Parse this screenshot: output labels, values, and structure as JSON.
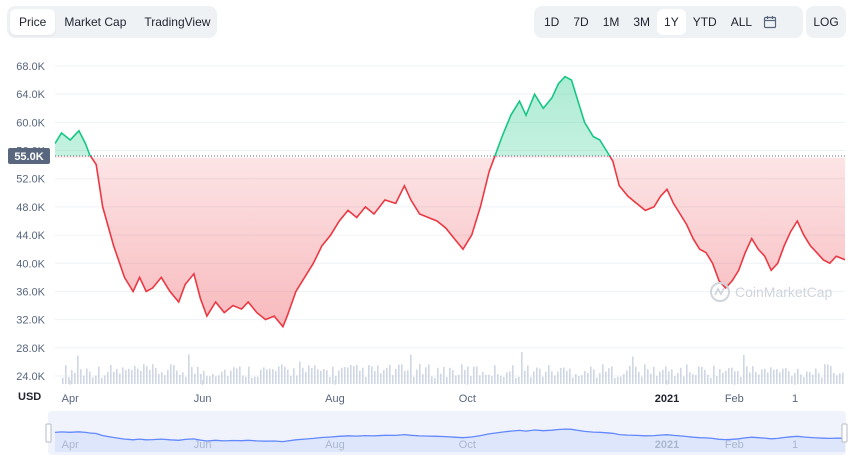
{
  "view_tabs": [
    {
      "label": "Price",
      "active": true
    },
    {
      "label": "Market Cap",
      "active": false
    },
    {
      "label": "TradingView",
      "active": false
    }
  ],
  "range_buttons": [
    {
      "label": "1D",
      "active": false
    },
    {
      "label": "7D",
      "active": false
    },
    {
      "label": "1M",
      "active": false
    },
    {
      "label": "3M",
      "active": false
    },
    {
      "label": "1Y",
      "active": true
    },
    {
      "label": "YTD",
      "active": false
    },
    {
      "label": "ALL",
      "active": false
    }
  ],
  "calendar_icon": "calendar-icon",
  "log_label": "LOG",
  "watermark": "CoinMarketCap",
  "colors": {
    "up": "#16c784",
    "down": "#ea3943",
    "navigator": "#6188ff",
    "grid": "#eff2f5"
  },
  "chart_data": {
    "type": "area",
    "currency_label": "USD",
    "baseline": 55000,
    "baseline_label": "55.0K",
    "y_ticks": [
      "68.0K",
      "64.0K",
      "60.0K",
      "56.0K",
      "52.0K",
      "48.0K",
      "44.0K",
      "40.0K",
      "36.0K",
      "32.0K",
      "28.0K",
      "24.0K"
    ],
    "ylim": [
      24000,
      68000
    ],
    "x_ticks": [
      {
        "label": "Apr",
        "date": "2020-04-01",
        "bold": false
      },
      {
        "label": "Jun",
        "date": "2020-06-01",
        "bold": false
      },
      {
        "label": "Aug",
        "date": "2020-08-01",
        "bold": false
      },
      {
        "label": "Oct",
        "date": "2020-10-01",
        "bold": false
      },
      {
        "label": "2021",
        "date": "2021-01-01",
        "bold": true
      },
      {
        "label": "Feb",
        "date": "2021-02-01",
        "bold": false
      },
      {
        "label": "1",
        "date": "2021-03-01",
        "bold": false
      }
    ],
    "x_range": [
      "2020-03-25",
      "2021-03-24"
    ],
    "price_series": [
      [
        "2020-03-25",
        57000
      ],
      [
        "2020-03-28",
        58500
      ],
      [
        "2020-04-01",
        57500
      ],
      [
        "2020-04-05",
        58800
      ],
      [
        "2020-04-08",
        57000
      ],
      [
        "2020-04-10",
        55400
      ],
      [
        "2020-04-13",
        54000
      ],
      [
        "2020-04-16",
        48000
      ],
      [
        "2020-04-21",
        42500
      ],
      [
        "2020-04-26",
        38000
      ],
      [
        "2020-04-30",
        36000
      ],
      [
        "2020-05-03",
        38000
      ],
      [
        "2020-05-06",
        36000
      ],
      [
        "2020-05-09",
        36500
      ],
      [
        "2020-05-13",
        38000
      ],
      [
        "2020-05-17",
        36000
      ],
      [
        "2020-05-21",
        34500
      ],
      [
        "2020-05-24",
        37000
      ],
      [
        "2020-05-28",
        38500
      ],
      [
        "2020-05-31",
        35000
      ],
      [
        "2020-06-03",
        32500
      ],
      [
        "2020-06-07",
        34500
      ],
      [
        "2020-06-11",
        33000
      ],
      [
        "2020-06-15",
        34000
      ],
      [
        "2020-06-19",
        33500
      ],
      [
        "2020-06-22",
        34500
      ],
      [
        "2020-06-26",
        33000
      ],
      [
        "2020-06-30",
        32000
      ],
      [
        "2020-07-04",
        32500
      ],
      [
        "2020-07-08",
        31000
      ],
      [
        "2020-07-10",
        32500
      ],
      [
        "2020-07-14",
        36000
      ],
      [
        "2020-07-18",
        38000
      ],
      [
        "2020-07-22",
        40000
      ],
      [
        "2020-07-26",
        42500
      ],
      [
        "2020-07-30",
        44000
      ],
      [
        "2020-08-03",
        46000
      ],
      [
        "2020-08-07",
        47500
      ],
      [
        "2020-08-11",
        46500
      ],
      [
        "2020-08-15",
        48000
      ],
      [
        "2020-08-19",
        47000
      ],
      [
        "2020-08-24",
        49000
      ],
      [
        "2020-08-29",
        48500
      ],
      [
        "2020-09-02",
        51000
      ],
      [
        "2020-09-05",
        49000
      ],
      [
        "2020-09-09",
        47000
      ],
      [
        "2020-09-13",
        46500
      ],
      [
        "2020-09-17",
        46000
      ],
      [
        "2020-09-21",
        45000
      ],
      [
        "2020-09-25",
        43500
      ],
      [
        "2020-09-29",
        42000
      ],
      [
        "2020-10-03",
        44000
      ],
      [
        "2020-10-07",
        48000
      ],
      [
        "2020-10-11",
        53000
      ],
      [
        "2020-10-14",
        55500
      ],
      [
        "2020-10-17",
        58000
      ],
      [
        "2020-10-21",
        61000
      ],
      [
        "2020-10-25",
        63000
      ],
      [
        "2020-10-28",
        61000
      ],
      [
        "2020-11-01",
        64000
      ],
      [
        "2020-11-05",
        62000
      ],
      [
        "2020-11-09",
        63500
      ],
      [
        "2020-11-12",
        65500
      ],
      [
        "2020-11-15",
        66500
      ],
      [
        "2020-11-18",
        66000
      ],
      [
        "2020-11-21",
        63000
      ],
      [
        "2020-11-24",
        60000
      ],
      [
        "2020-11-28",
        58000
      ],
      [
        "2020-12-01",
        57500
      ],
      [
        "2020-12-04",
        56000
      ],
      [
        "2020-12-07",
        54500
      ],
      [
        "2020-12-10",
        51000
      ],
      [
        "2020-12-14",
        49500
      ],
      [
        "2020-12-18",
        48500
      ],
      [
        "2020-12-22",
        47500
      ],
      [
        "2020-12-26",
        48000
      ],
      [
        "2020-12-29",
        49500
      ],
      [
        "2021-01-01",
        50500
      ],
      [
        "2021-01-04",
        48500
      ],
      [
        "2021-01-07",
        47000
      ],
      [
        "2021-01-10",
        45500
      ],
      [
        "2021-01-13",
        43500
      ],
      [
        "2021-01-16",
        42000
      ],
      [
        "2021-01-19",
        41500
      ],
      [
        "2021-01-22",
        40000
      ],
      [
        "2021-01-25",
        37500
      ],
      [
        "2021-01-28",
        36500
      ],
      [
        "2021-01-31",
        37500
      ],
      [
        "2021-02-03",
        39000
      ],
      [
        "2021-02-06",
        41500
      ],
      [
        "2021-02-09",
        43500
      ],
      [
        "2021-02-12",
        42000
      ],
      [
        "2021-02-15",
        41000
      ],
      [
        "2021-02-18",
        39000
      ],
      [
        "2021-02-21",
        40000
      ],
      [
        "2021-02-24",
        42500
      ],
      [
        "2021-02-27",
        44500
      ],
      [
        "2021-03-02",
        46000
      ],
      [
        "2021-03-05",
        44000
      ],
      [
        "2021-03-08",
        42500
      ],
      [
        "2021-03-11",
        41500
      ],
      [
        "2021-03-14",
        40500
      ],
      [
        "2021-03-17",
        40000
      ],
      [
        "2021-03-20",
        41000
      ],
      [
        "2021-03-24",
        40500
      ]
    ]
  }
}
